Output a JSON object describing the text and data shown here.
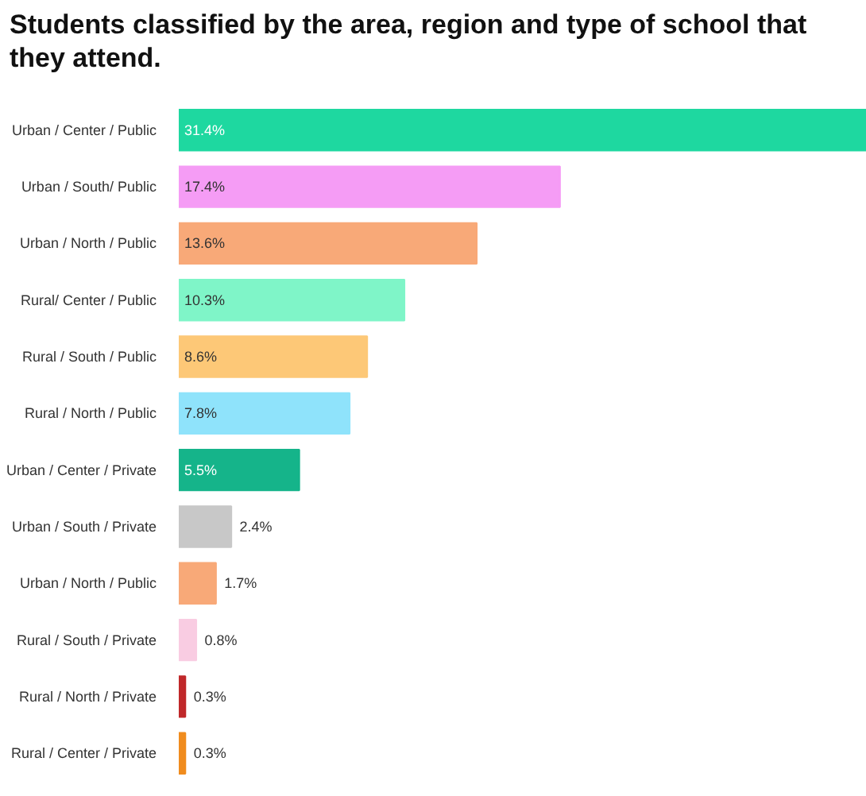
{
  "chart_data": {
    "type": "bar",
    "orientation": "horizontal",
    "title": "Students classified by the area, region and type of school that they attend.",
    "categories": [
      "Urban / Center / Public",
      "Urban / South/ Public",
      "Urban / North / Public",
      "Rural/ Center / Public",
      "Rural / South / Public",
      "Rural / North / Public",
      "Urban / Center / Private",
      "Urban / South / Private",
      "Urban / North / Public",
      "Rural / South / Private",
      "Rural / North / Private",
      "Rural / Center / Private"
    ],
    "values": [
      31.4,
      17.4,
      13.6,
      10.3,
      8.6,
      7.8,
      5.5,
      2.4,
      1.7,
      0.8,
      0.3,
      0.3
    ],
    "value_labels": [
      "31.4%",
      "17.4%",
      "13.6%",
      "10.3%",
      "8.6%",
      "7.8%",
      "5.5%",
      "2.4%",
      "1.7%",
      "0.8%",
      "0.3%",
      "0.3%"
    ],
    "colors": [
      "#1ed8a0",
      "#f59cf5",
      "#f8a978",
      "#7ff5c8",
      "#fdc877",
      "#8fe3fb",
      "#15b48a",
      "#c8c8c8",
      "#f8a978",
      "#f9cce2",
      "#c0282a",
      "#f08c1e"
    ]
  }
}
